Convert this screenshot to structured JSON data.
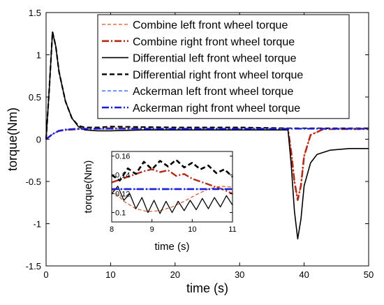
{
  "chart_data": {
    "type": "line",
    "title": "",
    "xlabel": "time (s)",
    "ylabel": "torque(Nm)",
    "xlim": [
      0,
      50
    ],
    "ylim": [
      -1.5,
      1.5
    ],
    "xticks": [
      "0",
      "10",
      "20",
      "30",
      "40",
      "50"
    ],
    "yticks": [
      "-1.5",
      "-1",
      "-0.5",
      "0",
      "0.5",
      "1",
      "1.5"
    ],
    "grid": false,
    "legend_position": "top-right",
    "series": [
      {
        "name": "Combine left front wheel torque",
        "color": "#d9532a",
        "style": "dashed",
        "x": [
          0,
          1,
          2,
          3,
          5,
          10,
          20,
          30,
          37.5,
          38,
          38.5,
          39,
          39.5,
          40,
          41,
          43,
          45,
          50
        ],
        "y": [
          0,
          0.06,
          0.1,
          0.11,
          0.12,
          0.12,
          0.12,
          0.12,
          0.12,
          -0.15,
          -0.5,
          -0.72,
          -0.55,
          -0.2,
          0.05,
          0.12,
          0.12,
          0.12
        ]
      },
      {
        "name": "Combine right front wheel torque",
        "color": "#b32a16",
        "style": "dashdot",
        "x": [
          0,
          1,
          2,
          3,
          5,
          10,
          20,
          30,
          37.5,
          38,
          38.5,
          39,
          39.5,
          40,
          41,
          43,
          45,
          50
        ],
        "y": [
          0,
          0.06,
          0.1,
          0.11,
          0.12,
          0.13,
          0.12,
          0.12,
          0.12,
          -0.15,
          -0.5,
          -0.72,
          -0.55,
          -0.2,
          0.05,
          0.12,
          0.12,
          0.12
        ]
      },
      {
        "name": "Differential left front wheel torque",
        "color": "#000000",
        "style": "solid",
        "x": [
          0,
          0.5,
          1,
          1.5,
          2,
          3,
          4,
          5,
          6,
          8,
          10,
          15,
          20,
          30,
          37.5,
          38,
          38.5,
          39,
          39.5,
          40,
          41,
          42,
          44,
          47,
          50
        ],
        "y": [
          0,
          0.6,
          1.27,
          1.1,
          0.8,
          0.45,
          0.25,
          0.15,
          0.11,
          0.1,
          0.1,
          0.11,
          0.11,
          0.11,
          0.11,
          -0.3,
          -0.85,
          -1.18,
          -0.95,
          -0.55,
          -0.28,
          -0.18,
          -0.13,
          -0.11,
          -0.11
        ]
      },
      {
        "name": "Differential right front wheel torque",
        "color": "#000000",
        "style": "dashed",
        "x": [
          0,
          0.5,
          1,
          1.5,
          2,
          3,
          4,
          5,
          6,
          8,
          10,
          20,
          30,
          37.5,
          50
        ],
        "y": [
          0,
          0.6,
          1.27,
          1.1,
          0.8,
          0.45,
          0.25,
          0.16,
          0.14,
          0.14,
          0.15,
          0.14,
          0.14,
          0.13,
          0.13
        ]
      },
      {
        "name": "Ackerman left front wheel torque",
        "color": "#4d7fff",
        "style": "dashed",
        "x": [
          0,
          1,
          2,
          3,
          5,
          10,
          20,
          30,
          40,
          50
        ],
        "y": [
          0,
          0.06,
          0.1,
          0.115,
          0.125,
          0.125,
          0.125,
          0.125,
          0.125,
          0.125
        ]
      },
      {
        "name": "Ackerman right front wheel torque",
        "color": "#1f1fd6",
        "style": "dashdot",
        "x": [
          0,
          1,
          2,
          3,
          5,
          10,
          20,
          30,
          40,
          50
        ],
        "y": [
          0,
          0.06,
          0.1,
          0.115,
          0.125,
          0.125,
          0.125,
          0.125,
          0.125,
          0.125
        ]
      }
    ],
    "inset": {
      "xlabel": "time (s)",
      "ylabel": "torque(Nm)",
      "xlim": [
        8,
        11
      ],
      "ylim": [
        0.09,
        0.165
      ],
      "xticks": [
        "8",
        "9",
        "10",
        "11"
      ],
      "yticks": [
        "0.1",
        "0.12",
        "0.14",
        "0.16"
      ],
      "series": [
        {
          "name": "Combine left front wheel torque",
          "x": [
            8,
            8.3,
            8.6,
            8.9,
            9.2,
            9.5,
            9.8,
            10.1,
            10.4,
            10.7,
            11
          ],
          "y": [
            0.125,
            0.112,
            0.104,
            0.101,
            0.102,
            0.106,
            0.112,
            0.119,
            0.125,
            0.128,
            0.127
          ]
        },
        {
          "name": "Combine right front wheel torque",
          "x": [
            8,
            8.2,
            8.4,
            8.6,
            8.8,
            9.0,
            9.2,
            9.4,
            9.6,
            9.8,
            10.0,
            10.2,
            10.4,
            10.6,
            10.8,
            11
          ],
          "y": [
            0.132,
            0.135,
            0.138,
            0.141,
            0.144,
            0.146,
            0.143,
            0.145,
            0.139,
            0.141,
            0.136,
            0.133,
            0.13,
            0.127,
            0.124,
            0.12
          ]
        },
        {
          "name": "Differential left front wheel torque",
          "x": [
            8,
            8.15,
            8.3,
            8.45,
            8.6,
            8.75,
            8.9,
            9.05,
            9.2,
            9.35,
            9.5,
            9.65,
            9.8,
            9.95,
            10.1,
            10.25,
            10.4,
            10.55,
            10.7,
            10.85,
            11
          ],
          "y": [
            0.12,
            0.128,
            0.113,
            0.12,
            0.104,
            0.116,
            0.1,
            0.113,
            0.099,
            0.112,
            0.1,
            0.112,
            0.102,
            0.113,
            0.103,
            0.115,
            0.104,
            0.116,
            0.106,
            0.118,
            0.108
          ]
        },
        {
          "name": "Differential right front wheel torque",
          "x": [
            8,
            8.2,
            8.4,
            8.6,
            8.8,
            9.0,
            9.2,
            9.4,
            9.6,
            9.8,
            10.0,
            10.2,
            10.4,
            10.6,
            10.8,
            11
          ],
          "y": [
            0.14,
            0.134,
            0.147,
            0.141,
            0.154,
            0.146,
            0.155,
            0.149,
            0.156,
            0.148,
            0.153,
            0.146,
            0.15,
            0.142,
            0.146,
            0.138
          ]
        },
        {
          "name": "Ackerman left front wheel torque",
          "x": [
            8,
            11
          ],
          "y": [
            0.125,
            0.125
          ]
        },
        {
          "name": "Ackerman right front wheel torque",
          "x": [
            8,
            11
          ],
          "y": [
            0.125,
            0.125
          ]
        }
      ]
    }
  }
}
